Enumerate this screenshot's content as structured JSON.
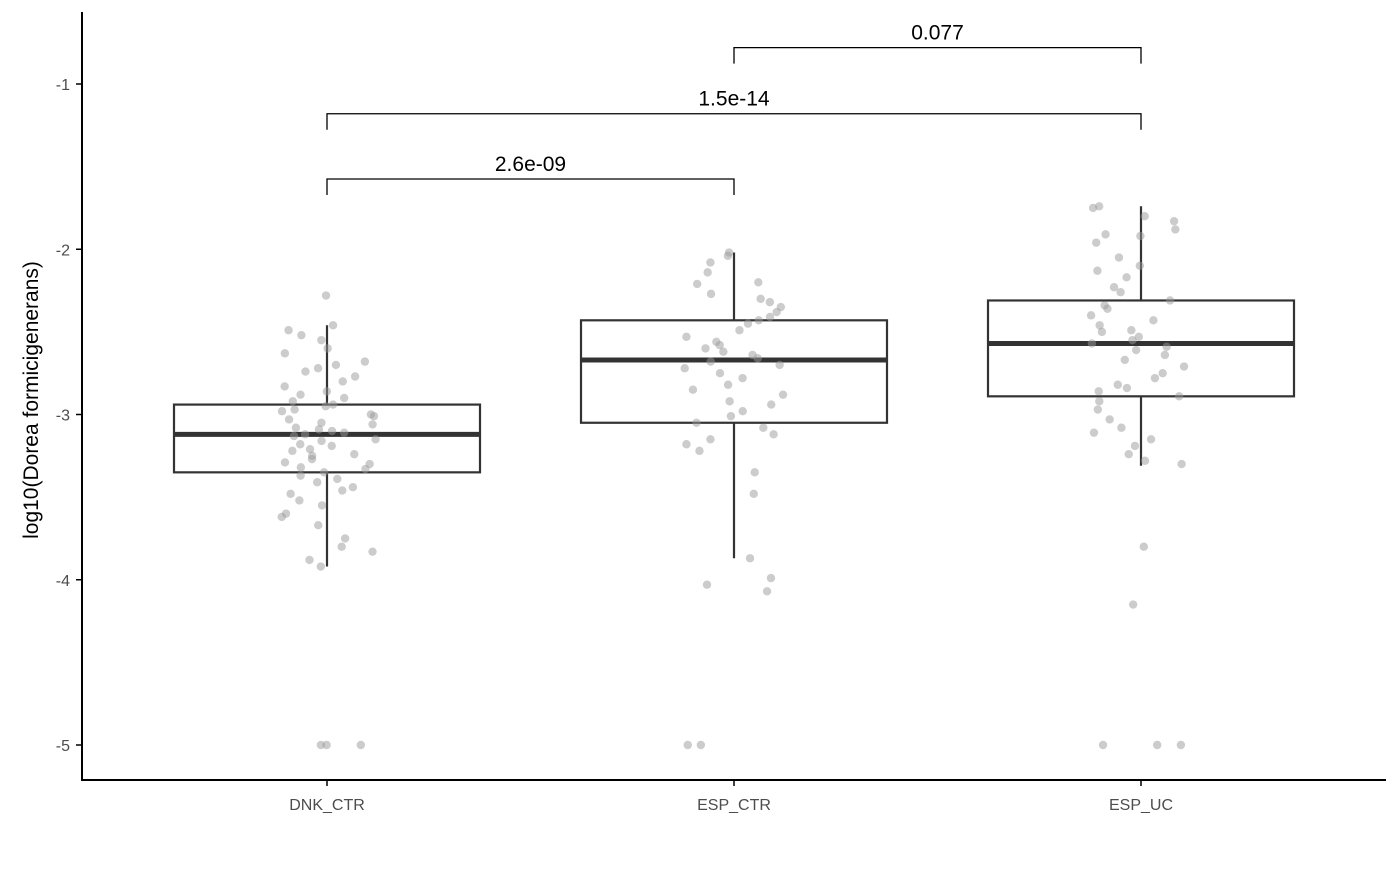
{
  "chart_data": {
    "type": "boxplot",
    "title": "",
    "xlabel": "",
    "ylabel": "log10(Dorea formicigenerans)",
    "ylim": [
      -5.2,
      -0.6
    ],
    "yticks": [
      -1,
      -2,
      -3,
      -4,
      -5
    ],
    "ytick_labels": [
      "-1",
      "-2",
      "-3",
      "-4",
      "-5"
    ],
    "categories": [
      "DNK_CTR",
      "ESP_CTR",
      "ESP_UC"
    ],
    "grid": false,
    "boxes": [
      {
        "category": "DNK_CTR",
        "whisker_high": -2.46,
        "q3": -2.94,
        "median": -3.12,
        "q1": -3.35,
        "whisker_low": -3.92
      },
      {
        "category": "ESP_CTR",
        "whisker_high": -2.02,
        "q3": -2.43,
        "median": -2.67,
        "q1": -3.05,
        "whisker_low": -3.87
      },
      {
        "category": "ESP_UC",
        "whisker_high": -1.74,
        "q3": -2.31,
        "median": -2.57,
        "q1": -2.89,
        "whisker_low": -3.31
      }
    ],
    "points": {
      "DNK_CTR": [
        -2.28,
        -2.46,
        -2.49,
        -2.52,
        -2.55,
        -2.6,
        -2.63,
        -2.68,
        -2.7,
        -2.72,
        -2.74,
        -2.77,
        -2.8,
        -2.83,
        -2.86,
        -2.88,
        -2.9,
        -2.92,
        -2.94,
        -2.95,
        -2.97,
        -2.98,
        -3.0,
        -3.01,
        -3.03,
        -3.05,
        -3.06,
        -3.08,
        -3.09,
        -3.1,
        -3.11,
        -3.12,
        -3.13,
        -3.15,
        -3.16,
        -3.18,
        -3.19,
        -3.21,
        -3.22,
        -3.24,
        -3.25,
        -3.27,
        -3.29,
        -3.3,
        -3.32,
        -3.33,
        -3.35,
        -3.37,
        -3.39,
        -3.41,
        -3.44,
        -3.46,
        -3.48,
        -3.52,
        -3.55,
        -3.6,
        -3.62,
        -3.67,
        -3.75,
        -3.8,
        -3.83,
        -3.88,
        -3.92,
        -5,
        -5,
        -5
      ],
      "ESP_CTR": [
        -2.02,
        -2.04,
        -2.08,
        -2.14,
        -2.2,
        -2.21,
        -2.27,
        -2.3,
        -2.32,
        -2.35,
        -2.38,
        -2.41,
        -2.43,
        -2.45,
        -2.49,
        -2.53,
        -2.56,
        -2.58,
        -2.6,
        -2.62,
        -2.64,
        -2.66,
        -2.68,
        -2.7,
        -2.72,
        -2.75,
        -2.78,
        -2.82,
        -2.85,
        -2.88,
        -2.92,
        -2.94,
        -2.98,
        -3.01,
        -3.05,
        -3.08,
        -3.12,
        -3.15,
        -3.18,
        -3.22,
        -3.35,
        -3.48,
        -3.87,
        -3.99,
        -4.03,
        -4.07,
        -5,
        -5
      ],
      "ESP_UC": [
        -1.74,
        -1.75,
        -1.8,
        -1.83,
        -1.88,
        -1.91,
        -1.92,
        -1.96,
        -2.05,
        -2.1,
        -2.13,
        -2.17,
        -2.23,
        -2.26,
        -2.31,
        -2.34,
        -2.36,
        -2.4,
        -2.43,
        -2.46,
        -2.49,
        -2.5,
        -2.53,
        -2.55,
        -2.57,
        -2.59,
        -2.61,
        -2.64,
        -2.67,
        -2.71,
        -2.75,
        -2.78,
        -2.82,
        -2.84,
        -2.86,
        -2.89,
        -2.92,
        -2.97,
        -3.03,
        -3.08,
        -3.11,
        -3.15,
        -3.19,
        -3.24,
        -3.28,
        -3.3,
        -3.8,
        -4.15,
        -5,
        -5,
        -5
      ]
    },
    "comparisons": [
      {
        "from": "DNK_CTR",
        "to": "ESP_CTR",
        "y": -1.575,
        "label": "2.6e-09"
      },
      {
        "from": "DNK_CTR",
        "to": "ESP_UC",
        "y": -1.18,
        "label": "1.5e-14"
      },
      {
        "from": "ESP_CTR",
        "to": "ESP_UC",
        "y": -0.78,
        "label": "0.077"
      }
    ],
    "colors": {
      "box": "#333333",
      "points": "#999999",
      "axis": "#000000",
      "tick_text": "#4d4d4d"
    }
  }
}
